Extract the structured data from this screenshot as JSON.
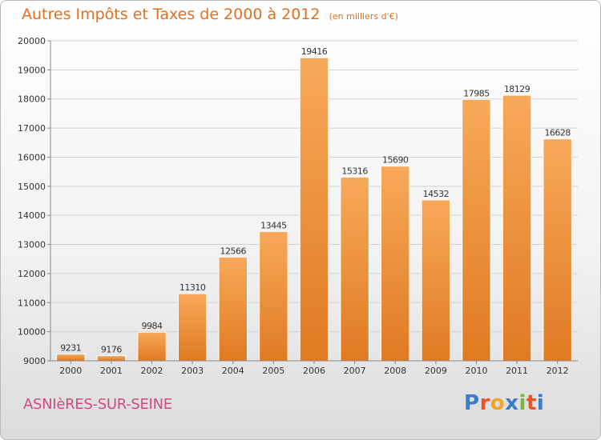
{
  "chart_data": {
    "type": "bar",
    "title": "Autres Impôts et Taxes de 2000 à 2012",
    "unit_note": "(en milliers d'€)",
    "categories": [
      "2000",
      "2001",
      "2002",
      "2003",
      "2004",
      "2005",
      "2006",
      "2007",
      "2008",
      "2009",
      "2010",
      "2011",
      "2012"
    ],
    "values": [
      9231,
      9176,
      9984,
      11310,
      12566,
      13445,
      19416,
      15316,
      15690,
      14532,
      17985,
      18129,
      16628
    ],
    "ylim": [
      9000,
      20000
    ],
    "yticks": [
      9000,
      10000,
      11000,
      12000,
      13000,
      14000,
      15000,
      16000,
      17000,
      18000,
      19000,
      20000
    ],
    "grid": true,
    "colors": {
      "bar_light": "#f7a95a",
      "bar_dark": "#e07a22",
      "title": "#e07020"
    }
  },
  "footer": {
    "city": "ASNIèRES-SUR-SEINE",
    "logo_letters": [
      {
        "ch": "P",
        "color": "#3a7ec8"
      },
      {
        "ch": "r",
        "color": "#e8542c"
      },
      {
        "ch": "o",
        "color": "#f2a424"
      },
      {
        "ch": "x",
        "color": "#3a7ec8"
      },
      {
        "ch": "i",
        "color": "#7cb53a"
      },
      {
        "ch": "t",
        "color": "#e8542c"
      },
      {
        "ch": "i",
        "color": "#3a7ec8"
      }
    ]
  }
}
